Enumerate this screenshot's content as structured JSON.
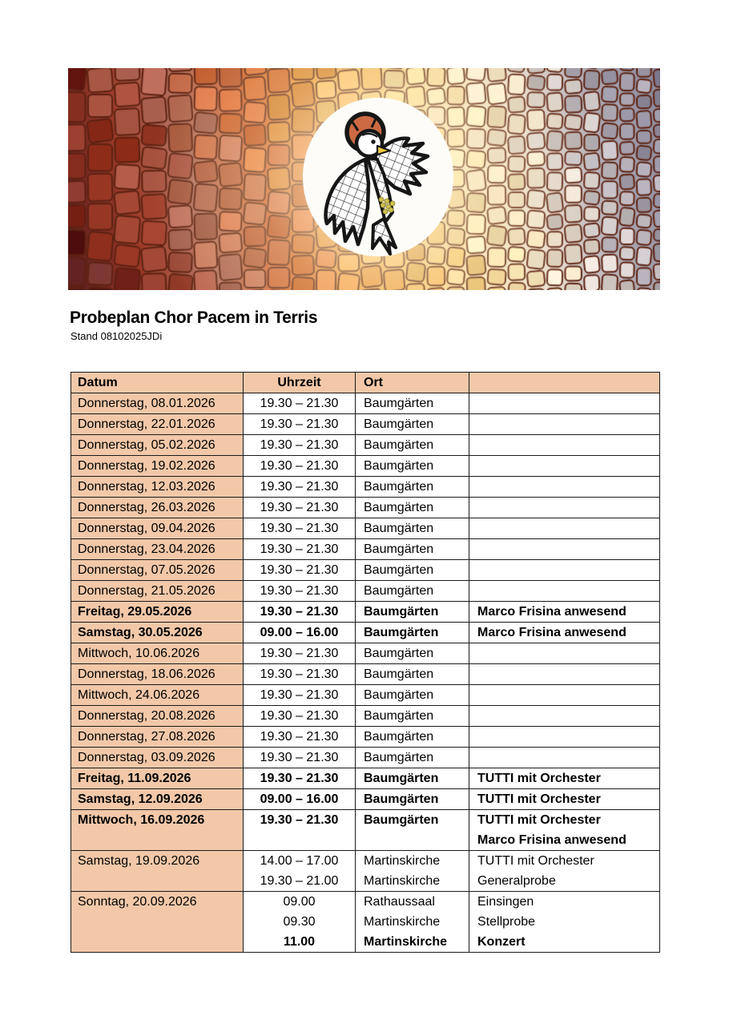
{
  "title": "Probeplan Chor Pacem in Terris",
  "subtitle": "Stand 08102025JDi",
  "header_image": {
    "icon": "peace-dove-icon",
    "palette": [
      "#5e1f1e",
      "#9d3a27",
      "#b4705f",
      "#d05e2a",
      "#eb9a3f",
      "#f6ca72",
      "#f9e7bd",
      "#e7ddd3",
      "#b2adb6",
      "#8d899d"
    ],
    "grout_color": "#5c2212",
    "circle_color": "#fdfcf8",
    "halo_color": "#cc6a44",
    "beak_color": "#ecc83e",
    "cluster_color": "#cfc14f"
  },
  "table": {
    "accent_color": "#f2c8a8",
    "header": {
      "datum": "Datum",
      "uhrzeit": "Uhrzeit",
      "ort": "Ort",
      "notes": ""
    },
    "rows": [
      {
        "datum": "Donnerstag, 08.01.2026",
        "bold": false,
        "lines": [
          {
            "uhrzeit": "19.30 – 21.30",
            "ort": "Baumgärten",
            "note": ""
          }
        ]
      },
      {
        "datum": "Donnerstag, 22.01.2026",
        "bold": false,
        "lines": [
          {
            "uhrzeit": "19.30 – 21.30",
            "ort": "Baumgärten",
            "note": ""
          }
        ]
      },
      {
        "datum": "Donnerstag, 05.02.2026",
        "bold": false,
        "lines": [
          {
            "uhrzeit": "19.30 – 21.30",
            "ort": "Baumgärten",
            "note": ""
          }
        ]
      },
      {
        "datum": "Donnerstag, 19.02.2026",
        "bold": false,
        "lines": [
          {
            "uhrzeit": "19.30 – 21.30",
            "ort": "Baumgärten",
            "note": ""
          }
        ]
      },
      {
        "datum": "Donnerstag, 12.03.2026",
        "bold": false,
        "lines": [
          {
            "uhrzeit": "19.30 – 21.30",
            "ort": "Baumgärten",
            "note": ""
          }
        ]
      },
      {
        "datum": "Donnerstag, 26.03.2026",
        "bold": false,
        "lines": [
          {
            "uhrzeit": "19.30 – 21.30",
            "ort": "Baumgärten",
            "note": ""
          }
        ]
      },
      {
        "datum": "Donnerstag, 09.04.2026",
        "bold": false,
        "lines": [
          {
            "uhrzeit": "19.30 – 21.30",
            "ort": "Baumgärten",
            "note": ""
          }
        ]
      },
      {
        "datum": "Donnerstag, 23.04.2026",
        "bold": false,
        "lines": [
          {
            "uhrzeit": "19.30 – 21.30",
            "ort": "Baumgärten",
            "note": ""
          }
        ]
      },
      {
        "datum": "Donnerstag, 07.05.2026",
        "bold": false,
        "lines": [
          {
            "uhrzeit": "19.30 – 21.30",
            "ort": "Baumgärten",
            "note": ""
          }
        ]
      },
      {
        "datum": "Donnerstag, 21.05.2026",
        "bold": false,
        "lines": [
          {
            "uhrzeit": "19.30 – 21.30",
            "ort": "Baumgärten",
            "note": ""
          }
        ]
      },
      {
        "datum": "Freitag, 29.05.2026",
        "bold": true,
        "lines": [
          {
            "uhrzeit": "19.30 – 21.30",
            "ort": "Baumgärten",
            "note": "Marco Frisina anwesend"
          }
        ]
      },
      {
        "datum": "Samstag, 30.05.2026",
        "bold": true,
        "lines": [
          {
            "uhrzeit": "09.00 – 16.00",
            "ort": "Baumgärten",
            "note": "Marco Frisina anwesend"
          }
        ]
      },
      {
        "datum": "Mittwoch, 10.06.2026",
        "bold": false,
        "lines": [
          {
            "uhrzeit": "19.30 – 21.30",
            "ort": "Baumgärten",
            "note": ""
          }
        ]
      },
      {
        "datum": "Donnerstag, 18.06.2026",
        "bold": false,
        "lines": [
          {
            "uhrzeit": "19.30 – 21.30",
            "ort": "Baumgärten",
            "note": ""
          }
        ]
      },
      {
        "datum": "Mittwoch, 24.06.2026",
        "bold": false,
        "lines": [
          {
            "uhrzeit": "19.30 – 21.30",
            "ort": "Baumgärten",
            "note": ""
          }
        ]
      },
      {
        "datum": "Donnerstag, 20.08.2026",
        "bold": false,
        "lines": [
          {
            "uhrzeit": "19.30 – 21.30",
            "ort": "Baumgärten",
            "note": ""
          }
        ]
      },
      {
        "datum": "Donnerstag, 27.08.2026",
        "bold": false,
        "lines": [
          {
            "uhrzeit": "19.30 – 21.30",
            "ort": "Baumgärten",
            "note": ""
          }
        ]
      },
      {
        "datum": "Donnerstag, 03.09.2026",
        "bold": false,
        "lines": [
          {
            "uhrzeit": "19.30 – 21.30",
            "ort": "Baumgärten",
            "note": ""
          }
        ]
      },
      {
        "datum": "Freitag, 11.09.2026",
        "bold": true,
        "lines": [
          {
            "uhrzeit": "19.30 – 21.30",
            "ort": "Baumgärten",
            "note": "TUTTI mit Orchester"
          }
        ]
      },
      {
        "datum": "Samstag, 12.09.2026",
        "bold": true,
        "lines": [
          {
            "uhrzeit": "09.00 – 16.00",
            "ort": "Baumgärten",
            "note": "TUTTI mit Orchester"
          }
        ]
      },
      {
        "datum": "Mittwoch, 16.09.2026",
        "bold": true,
        "lines": [
          {
            "uhrzeit": "19.30 – 21.30",
            "ort": "Baumgärten",
            "note": "TUTTI mit Orchester"
          },
          {
            "uhrzeit": "",
            "ort": "",
            "note": "Marco Frisina anwesend"
          }
        ]
      },
      {
        "datum": "Samstag, 19.09.2026",
        "bold": false,
        "lines": [
          {
            "uhrzeit": "14.00 – 17.00",
            "ort": "Martinskirche",
            "note": "TUTTI mit Orchester"
          },
          {
            "uhrzeit": "19.30 – 21.00",
            "ort": "Martinskirche",
            "note": "Generalprobe"
          }
        ]
      },
      {
        "datum": "Sonntag, 20.09.2026",
        "bold": false,
        "lines": [
          {
            "uhrzeit": "09.00",
            "ort": "Rathaussaal",
            "note": "Einsingen"
          },
          {
            "uhrzeit": "09.30",
            "ort": "Martinskirche",
            "note": "Stellprobe"
          },
          {
            "uhrzeit": "11.00",
            "ort": "Martinskirche",
            "note": "Konzert",
            "bold": true
          }
        ]
      }
    ]
  }
}
